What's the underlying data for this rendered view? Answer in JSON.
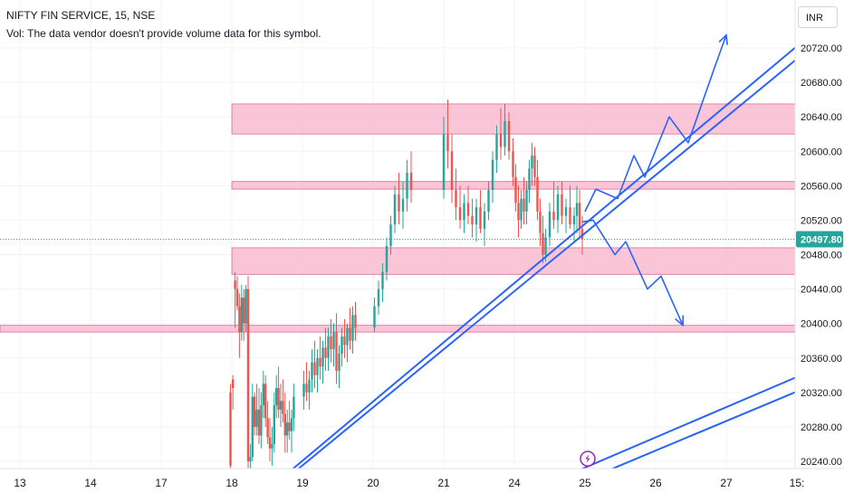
{
  "header": {
    "symbol_title": "NIFTY FIN SERVICE, 15, NSE",
    "volume_note": "Vol: The data vendor doesn't provide volume data for this symbol."
  },
  "currency_label": "INR",
  "colors": {
    "up": "#26a69a",
    "down": "#ef5350",
    "zone_fill": "#f8bbd0",
    "zone_stroke": "#c2185b",
    "drawing": "#2962ff",
    "price_label_bg": "#26a69a",
    "axis_text": "#131722"
  },
  "chart_data": {
    "type": "candlestick",
    "title": "NIFTY FIN SERVICE, 15, NSE",
    "xlabel": "",
    "ylabel": "",
    "y_ticks": [
      20240,
      20280,
      20320,
      20360,
      20400,
      20440,
      20480,
      20520,
      20560,
      20600,
      20640,
      20680,
      20720
    ],
    "y_tick_labels": [
      "20240.00",
      "20280.00",
      "20320.00",
      "20360.00",
      "20400.00",
      "20440.00",
      "20480.00",
      "20520.00",
      "20560.00",
      "20600.00",
      "20640.00",
      "20680.00",
      "20720.00"
    ],
    "ylim": [
      20230,
      20745
    ],
    "x_tick_labels": [
      "13",
      "14",
      "17",
      "18",
      "19",
      "20",
      "21",
      "24",
      "25",
      "26",
      "27",
      "15:"
    ],
    "x_tick_slots": [
      -78,
      -52,
      -26,
      0,
      26,
      52,
      78,
      104,
      130,
      156,
      182,
      208
    ],
    "xlim": [
      -86,
      211
    ],
    "current_price": 20497.8,
    "current_price_label": "20497.80",
    "zones": [
      {
        "x_start": 0,
        "y_low": 20620,
        "y_high": 20655
      },
      {
        "x_start": 0,
        "y_low": 20556,
        "y_high": 20565
      },
      {
        "x_start": 0,
        "y_low": 20457,
        "y_high": 20488
      },
      {
        "x_start": -86,
        "y_low": 20390,
        "y_high": 20398
      }
    ],
    "trendlines": [
      {
        "x1": 22,
        "y1": 20230,
        "x2": 211,
        "y2": 20730
      },
      {
        "x1": 24,
        "y1": 20230,
        "x2": 211,
        "y2": 20715
      },
      {
        "x1": 128,
        "y1": 20230,
        "x2": 211,
        "y2": 20342
      },
      {
        "x1": 139,
        "y1": 20230,
        "x2": 211,
        "y2": 20325
      }
    ],
    "projection_up": [
      [
        130,
        20530
      ],
      [
        134,
        20556
      ],
      [
        142,
        20545
      ],
      [
        148,
        20595
      ],
      [
        152,
        20570
      ],
      [
        161,
        20640
      ],
      [
        168,
        20610
      ],
      [
        178,
        20700
      ],
      [
        182,
        20735
      ]
    ],
    "projection_down": [
      [
        129,
        20518
      ],
      [
        133,
        20520
      ],
      [
        141,
        20480
      ],
      [
        145,
        20495
      ],
      [
        153,
        20440
      ],
      [
        158,
        20455
      ],
      [
        166,
        20398
      ]
    ],
    "event_marker": {
      "x": 131,
      "y": 20243
    },
    "candles": [
      [
        20320,
        20330,
        20230,
        20235
      ],
      [
        20335,
        20340,
        20300,
        20325
      ],
      [
        20450,
        20460,
        20395,
        20440
      ],
      [
        20440,
        20455,
        20415,
        20420
      ],
      [
        20420,
        20435,
        20360,
        20390
      ],
      [
        20390,
        20445,
        20380,
        20430
      ],
      [
        20430,
        20440,
        20380,
        20400
      ],
      [
        20400,
        20445,
        20390,
        20440
      ],
      [
        20440,
        20455,
        20230,
        20240
      ],
      [
        20240,
        20260,
        20230,
        20245
      ],
      [
        20245,
        20330,
        20240,
        20315
      ],
      [
        20315,
        20320,
        20270,
        20280
      ],
      [
        20280,
        20330,
        20270,
        20300
      ],
      [
        20300,
        20325,
        20260,
        20270
      ],
      [
        20270,
        20320,
        20255,
        20305
      ],
      [
        20305,
        20345,
        20290,
        20330
      ],
      [
        20330,
        20340,
        20280,
        20290
      ],
      [
        20290,
        20310,
        20260,
        20268
      ],
      [
        20268,
        20290,
        20240,
        20255
      ],
      [
        20255,
        20280,
        20235,
        20260
      ],
      [
        20260,
        20320,
        20250,
        20305
      ],
      [
        20305,
        20340,
        20290,
        20325
      ],
      [
        20325,
        20350,
        20290,
        20300
      ],
      [
        20300,
        20330,
        20280,
        20310
      ],
      [
        20310,
        20335,
        20285,
        20295
      ],
      [
        20295,
        20320,
        20250,
        20270
      ],
      [
        20270,
        20300,
        20250,
        20285
      ],
      [
        20285,
        20310,
        20265,
        20275
      ],
      [
        20275,
        20300,
        20250,
        20290
      ],
      [
        20290,
        20330,
        20275,
        20315
      ],
      [
        20315,
        20345,
        20300,
        20330
      ],
      [
        20330,
        20355,
        20310,
        20320
      ],
      [
        20320,
        20345,
        20300,
        20335
      ],
      [
        20335,
        20370,
        20320,
        20355
      ],
      [
        20355,
        20380,
        20325,
        20340
      ],
      [
        20340,
        20370,
        20320,
        20360
      ],
      [
        20360,
        20385,
        20335,
        20350
      ],
      [
        20350,
        20380,
        20330,
        20372
      ],
      [
        20372,
        20395,
        20345,
        20360
      ],
      [
        20360,
        20395,
        20345,
        20385
      ],
      [
        20385,
        20405,
        20355,
        20370
      ],
      [
        20370,
        20400,
        20350,
        20390
      ],
      [
        20390,
        20412,
        20330,
        20345
      ],
      [
        20345,
        20375,
        20325,
        20365
      ],
      [
        20365,
        20395,
        20350,
        20385
      ],
      [
        20385,
        20405,
        20360,
        20375
      ],
      [
        20375,
        20400,
        20355,
        20395
      ],
      [
        20395,
        20418,
        20370,
        20380
      ],
      [
        20380,
        20420,
        20365,
        20410
      ],
      [
        20410,
        20425,
        20380,
        20395
      ],
      [
        20395,
        20430,
        20390,
        20420
      ],
      [
        20420,
        20450,
        20410,
        20440
      ],
      [
        20440,
        20470,
        20425,
        20460
      ],
      [
        20460,
        20500,
        20450,
        20490
      ],
      [
        20490,
        20525,
        20480,
        20515
      ],
      [
        20515,
        20560,
        20505,
        20550
      ],
      [
        20550,
        20575,
        20515,
        20530
      ],
      [
        20530,
        20565,
        20510,
        20545
      ],
      [
        20545,
        20590,
        20530,
        20575
      ],
      [
        20575,
        20600,
        20540,
        20555
      ],
      [
        20555,
        20640,
        20545,
        20620
      ],
      [
        20620,
        20660,
        20580,
        20600
      ],
      [
        20600,
        20620,
        20540,
        20555
      ],
      [
        20555,
        20580,
        20520,
        20535
      ],
      [
        20535,
        20560,
        20510,
        20520
      ],
      [
        20520,
        20550,
        20505,
        20540
      ],
      [
        20540,
        20560,
        20515,
        20525
      ],
      [
        20525,
        20545,
        20500,
        20515
      ],
      [
        20515,
        20545,
        20495,
        20535
      ],
      [
        20535,
        20555,
        20505,
        20510
      ],
      [
        20510,
        20540,
        20490,
        20530
      ],
      [
        20530,
        20565,
        20520,
        20555
      ],
      [
        20555,
        20600,
        20540,
        20590
      ],
      [
        20590,
        20630,
        20575,
        20620
      ],
      [
        20620,
        20650,
        20590,
        20605
      ],
      [
        20605,
        20655,
        20595,
        20635
      ],
      [
        20635,
        20645,
        20590,
        20600
      ],
      [
        20600,
        20615,
        20560,
        20570
      ],
      [
        20570,
        20585,
        20530,
        20540
      ],
      [
        20540,
        20560,
        20500,
        20520
      ],
      [
        20520,
        20555,
        20510,
        20545
      ],
      [
        20545,
        20570,
        20515,
        20530
      ],
      [
        20530,
        20565,
        20515,
        20555
      ],
      [
        20555,
        20590,
        20540,
        20580
      ],
      [
        20580,
        20610,
        20560,
        20595
      ],
      [
        20595,
        20605,
        20560,
        20570
      ],
      [
        20570,
        20590,
        20520,
        20530
      ],
      [
        20530,
        20545,
        20490,
        20505
      ],
      [
        20505,
        20525,
        20470,
        20480
      ],
      [
        20480,
        20510,
        20472,
        20500
      ],
      [
        20500,
        20540,
        20490,
        20530
      ],
      [
        20530,
        20565,
        20510,
        20520
      ],
      [
        20520,
        20560,
        20505,
        20550
      ],
      [
        20550,
        20565,
        20515,
        20525
      ],
      [
        20525,
        20545,
        20505,
        20535
      ],
      [
        20535,
        20560,
        20510,
        20515
      ],
      [
        20515,
        20535,
        20495,
        20525
      ],
      [
        20525,
        20560,
        20505,
        20540
      ],
      [
        20540,
        20555,
        20500,
        20510
      ],
      [
        20510,
        20525,
        20480,
        20497.8
      ]
    ],
    "candle_x": [
      -0.5,
      0.4,
      1.2,
      2.0,
      2.8,
      3.6,
      4.4,
      5.2,
      6.0,
      6.8,
      7.6,
      8.4,
      9.2,
      10.0,
      10.8,
      11.6,
      12.4,
      13.2,
      14.0,
      14.8,
      15.6,
      16.4,
      17.2,
      18.0,
      18.8,
      19.6,
      20.4,
      21.2,
      22.0,
      22.8,
      26.5,
      27.5,
      28.5,
      29.5,
      30.5,
      31.5,
      32.5,
      33.5,
      34.5,
      35.5,
      36.5,
      37.5,
      38.5,
      39.5,
      40.5,
      41.5,
      42.5,
      43.5,
      44.5,
      45.5,
      52.5,
      54.0,
      55.5,
      57.0,
      58.5,
      60.0,
      61.5,
      63.0,
      64.5,
      66.0,
      78.0,
      79.5,
      81.0,
      82.5,
      84.0,
      85.5,
      87.0,
      88.5,
      90.0,
      91.5,
      93.0,
      94.5,
      96.0,
      97.5,
      99.0,
      100.5,
      102.0,
      103.5,
      104.5,
      105.5,
      106.5,
      107.5,
      108.5,
      109.5,
      110.5,
      111.5,
      112.5,
      113.5,
      114.5,
      115.5,
      117.0,
      118.5,
      120.0,
      121.5,
      123.0,
      124.5,
      126.0,
      127.0,
      128.0,
      129.0
    ]
  }
}
